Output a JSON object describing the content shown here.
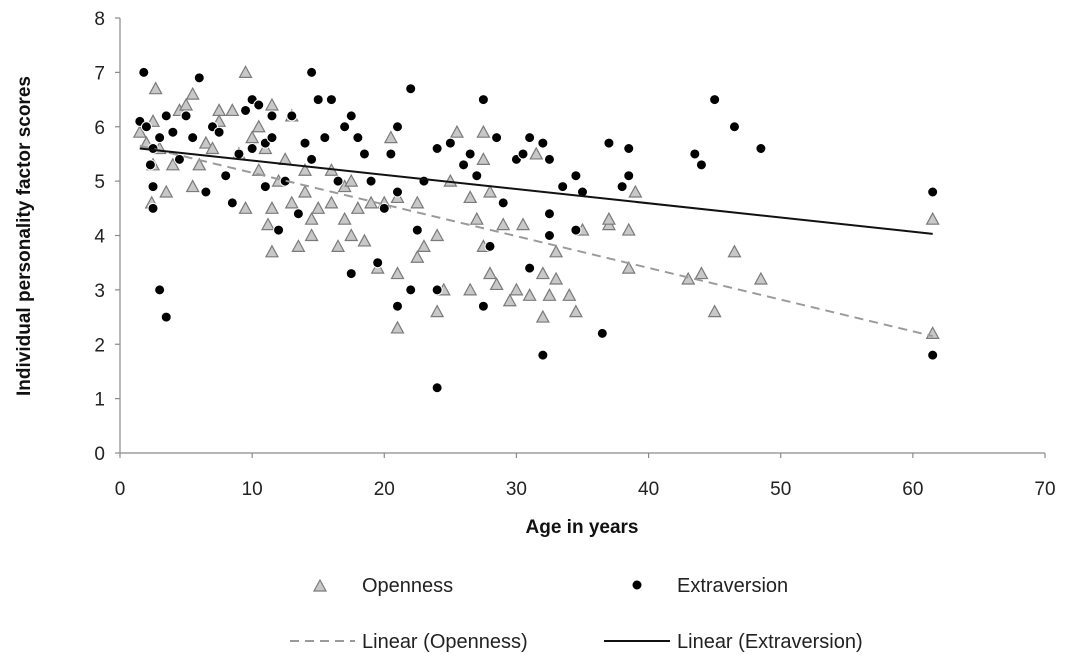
{
  "chart_data": {
    "type": "scatter",
    "xlabel": "Age in years",
    "ylabel": "Individual personality factor scores",
    "xlim": [
      0,
      70
    ],
    "ylim": [
      0,
      8
    ],
    "xticks": [
      "0",
      "10",
      "20",
      "30",
      "40",
      "50",
      "60",
      "70"
    ],
    "yticks": [
      "0",
      "1",
      "2",
      "3",
      "4",
      "5",
      "6",
      "7",
      "8"
    ],
    "grid": false,
    "legend_position": "bottom",
    "series": [
      {
        "name": "Openness",
        "marker": "triangle",
        "color": "#9a9a9a",
        "points": [
          [
            1.5,
            5.9
          ],
          [
            2.0,
            5.7
          ],
          [
            2.5,
            6.1
          ],
          [
            2.5,
            5.3
          ],
          [
            2.7,
            6.7
          ],
          [
            3.0,
            5.6
          ],
          [
            2.4,
            4.6
          ],
          [
            3.5,
            4.8
          ],
          [
            4.0,
            5.3
          ],
          [
            4.5,
            6.3
          ],
          [
            5.0,
            6.4
          ],
          [
            5.5,
            4.9
          ],
          [
            5.5,
            6.6
          ],
          [
            6.0,
            5.3
          ],
          [
            6.5,
            5.7
          ],
          [
            7.0,
            5.6
          ],
          [
            7.5,
            6.3
          ],
          [
            7.5,
            6.1
          ],
          [
            8.5,
            6.3
          ],
          [
            9.0,
            5.5
          ],
          [
            9.5,
            7.0
          ],
          [
            9.5,
            4.5
          ],
          [
            10.0,
            5.8
          ],
          [
            10.5,
            5.2
          ],
          [
            10.5,
            6.0
          ],
          [
            11.0,
            5.6
          ],
          [
            11.2,
            4.2
          ],
          [
            11.5,
            4.5
          ],
          [
            11.5,
            3.7
          ],
          [
            11.5,
            6.4
          ],
          [
            12.0,
            5.0
          ],
          [
            12.5,
            5.4
          ],
          [
            13.0,
            6.2
          ],
          [
            13.0,
            4.6
          ],
          [
            13.5,
            3.8
          ],
          [
            14.0,
            5.2
          ],
          [
            14.0,
            4.8
          ],
          [
            14.5,
            4.3
          ],
          [
            14.5,
            4.0
          ],
          [
            15.0,
            4.5
          ],
          [
            16.0,
            5.2
          ],
          [
            16.0,
            4.6
          ],
          [
            16.5,
            3.8
          ],
          [
            17.0,
            4.9
          ],
          [
            17.0,
            4.3
          ],
          [
            17.5,
            4.0
          ],
          [
            17.5,
            5.0
          ],
          [
            18.0,
            4.5
          ],
          [
            18.5,
            3.9
          ],
          [
            19.0,
            4.6
          ],
          [
            19.5,
            3.4
          ],
          [
            20.0,
            4.6
          ],
          [
            20.5,
            5.8
          ],
          [
            21.0,
            4.7
          ],
          [
            21.0,
            3.3
          ],
          [
            21.0,
            2.3
          ],
          [
            22.5,
            4.6
          ],
          [
            22.5,
            3.6
          ],
          [
            23.0,
            3.8
          ],
          [
            24.0,
            4.0
          ],
          [
            24.0,
            2.6
          ],
          [
            24.5,
            3.0
          ],
          [
            25.0,
            5.0
          ],
          [
            25.5,
            5.9
          ],
          [
            26.5,
            4.7
          ],
          [
            26.5,
            3.0
          ],
          [
            27.0,
            4.3
          ],
          [
            27.5,
            3.8
          ],
          [
            27.5,
            5.9
          ],
          [
            27.5,
            5.4
          ],
          [
            28.0,
            3.3
          ],
          [
            28.0,
            4.8
          ],
          [
            28.5,
            3.1
          ],
          [
            29.0,
            4.2
          ],
          [
            29.5,
            2.8
          ],
          [
            30.0,
            3.0
          ],
          [
            30.5,
            4.2
          ],
          [
            31.0,
            2.9
          ],
          [
            31.5,
            5.5
          ],
          [
            32.0,
            3.3
          ],
          [
            32.0,
            2.5
          ],
          [
            32.5,
            2.9
          ],
          [
            33.0,
            3.7
          ],
          [
            33.0,
            3.2
          ],
          [
            34.0,
            2.9
          ],
          [
            34.5,
            2.6
          ],
          [
            35.0,
            4.1
          ],
          [
            37.0,
            4.2
          ],
          [
            37.0,
            4.3
          ],
          [
            38.5,
            4.1
          ],
          [
            38.5,
            3.4
          ],
          [
            39.0,
            4.8
          ],
          [
            43.0,
            3.2
          ],
          [
            44.0,
            3.3
          ],
          [
            45.0,
            2.6
          ],
          [
            46.5,
            3.7
          ],
          [
            48.5,
            3.2
          ],
          [
            61.5,
            4.3
          ],
          [
            61.5,
            2.2
          ]
        ]
      },
      {
        "name": "Extraversion",
        "marker": "circle",
        "color": "#000000",
        "points": [
          [
            1.5,
            6.1
          ],
          [
            1.8,
            7.0
          ],
          [
            2.0,
            6.0
          ],
          [
            2.3,
            5.3
          ],
          [
            2.5,
            5.6
          ],
          [
            2.5,
            4.9
          ],
          [
            2.5,
            4.5
          ],
          [
            3.0,
            5.8
          ],
          [
            3.0,
            3.0
          ],
          [
            3.5,
            2.5
          ],
          [
            3.5,
            6.2
          ],
          [
            4.0,
            5.9
          ],
          [
            4.5,
            5.4
          ],
          [
            5.0,
            6.2
          ],
          [
            5.5,
            5.8
          ],
          [
            6.0,
            6.9
          ],
          [
            6.5,
            4.8
          ],
          [
            7.0,
            6.0
          ],
          [
            7.5,
            5.9
          ],
          [
            8.0,
            5.1
          ],
          [
            8.5,
            4.6
          ],
          [
            9.0,
            5.5
          ],
          [
            9.5,
            6.3
          ],
          [
            10.0,
            6.5
          ],
          [
            10.0,
            5.6
          ],
          [
            10.5,
            6.4
          ],
          [
            11.0,
            5.7
          ],
          [
            11.0,
            4.9
          ],
          [
            11.5,
            6.2
          ],
          [
            11.5,
            5.8
          ],
          [
            12.0,
            4.1
          ],
          [
            12.5,
            5.0
          ],
          [
            13.0,
            6.2
          ],
          [
            13.5,
            4.4
          ],
          [
            14.0,
            5.7
          ],
          [
            14.5,
            7.0
          ],
          [
            14.5,
            5.4
          ],
          [
            15.0,
            6.5
          ],
          [
            15.5,
            5.8
          ],
          [
            16.0,
            6.5
          ],
          [
            16.5,
            5.0
          ],
          [
            17.0,
            6.0
          ],
          [
            17.5,
            6.2
          ],
          [
            17.5,
            3.3
          ],
          [
            18.0,
            5.8
          ],
          [
            18.5,
            5.5
          ],
          [
            19.0,
            5.0
          ],
          [
            19.5,
            3.5
          ],
          [
            20.0,
            4.5
          ],
          [
            20.5,
            5.5
          ],
          [
            21.0,
            6.0
          ],
          [
            21.0,
            4.8
          ],
          [
            21.0,
            2.7
          ],
          [
            22.0,
            6.7
          ],
          [
            22.0,
            3.0
          ],
          [
            22.5,
            4.1
          ],
          [
            23.0,
            5.0
          ],
          [
            24.0,
            5.6
          ],
          [
            24.0,
            3.0
          ],
          [
            24.0,
            1.2
          ],
          [
            25.0,
            5.7
          ],
          [
            26.0,
            5.3
          ],
          [
            26.5,
            5.5
          ],
          [
            27.0,
            5.1
          ],
          [
            27.5,
            6.5
          ],
          [
            27.5,
            2.7
          ],
          [
            28.0,
            3.8
          ],
          [
            28.5,
            5.8
          ],
          [
            29.0,
            4.6
          ],
          [
            30.0,
            5.4
          ],
          [
            30.5,
            5.5
          ],
          [
            31.0,
            5.8
          ],
          [
            31.0,
            3.4
          ],
          [
            32.0,
            5.7
          ],
          [
            32.5,
            5.4
          ],
          [
            32.5,
            4.4
          ],
          [
            32.5,
            4.0
          ],
          [
            32.0,
            1.8
          ],
          [
            33.5,
            4.9
          ],
          [
            34.5,
            5.1
          ],
          [
            34.5,
            4.1
          ],
          [
            35.0,
            4.8
          ],
          [
            37.0,
            5.7
          ],
          [
            36.5,
            2.2
          ],
          [
            38.5,
            5.6
          ],
          [
            38.5,
            5.1
          ],
          [
            38.0,
            4.9
          ],
          [
            43.5,
            5.5
          ],
          [
            44.0,
            5.3
          ],
          [
            45.0,
            6.5
          ],
          [
            46.5,
            6.0
          ],
          [
            48.5,
            5.6
          ],
          [
            61.5,
            4.8
          ],
          [
            61.5,
            1.8
          ]
        ]
      }
    ],
    "trendlines": [
      {
        "name": "Linear (Openness)",
        "x": [
          1.5,
          61.5
        ],
        "y": [
          5.65,
          2.15
        ],
        "style": "dashed",
        "color": "#9a9a9a"
      },
      {
        "name": "Linear (Extraversion)",
        "x": [
          1.5,
          61.5
        ],
        "y": [
          5.6,
          4.03
        ],
        "style": "solid",
        "color": "#111111"
      }
    ]
  }
}
